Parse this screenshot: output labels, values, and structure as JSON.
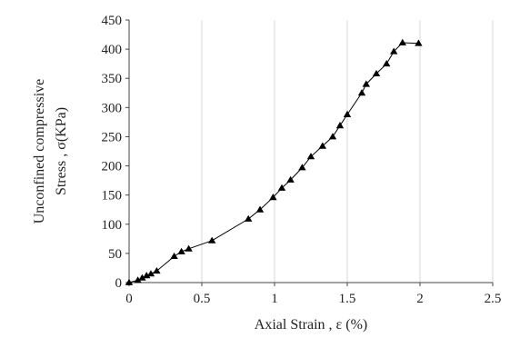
{
  "chart_data": {
    "type": "line",
    "xlabel": "Axial Strain , ε (%)",
    "ylabel_line1": "Unconfined compressive",
    "ylabel_line2": "Stress , σ(KPa)",
    "xlim": [
      0,
      2.5
    ],
    "ylim": [
      0,
      450
    ],
    "xticks": [
      0,
      0.5,
      1,
      1.5,
      2,
      2.5
    ],
    "yticks": [
      0,
      50,
      100,
      150,
      200,
      250,
      300,
      350,
      400,
      450
    ],
    "grid": "vertical",
    "marker": "triangle",
    "series": [
      {
        "x": [
          0,
          0.06,
          0.09,
          0.12,
          0.15,
          0.19,
          0.31,
          0.36,
          0.41,
          0.57,
          0.82,
          0.9,
          0.99,
          1.05,
          1.11,
          1.19,
          1.25,
          1.33,
          1.4,
          1.45,
          1.5,
          1.6,
          1.63,
          1.7,
          1.77,
          1.82,
          1.88,
          1.99
        ],
        "y": [
          0,
          4,
          8,
          12,
          15,
          20,
          45,
          53,
          58,
          72,
          109,
          125,
          146,
          162,
          176,
          197,
          216,
          234,
          250,
          269,
          288,
          325,
          340,
          358,
          375,
          396,
          411,
          410
        ]
      }
    ]
  }
}
